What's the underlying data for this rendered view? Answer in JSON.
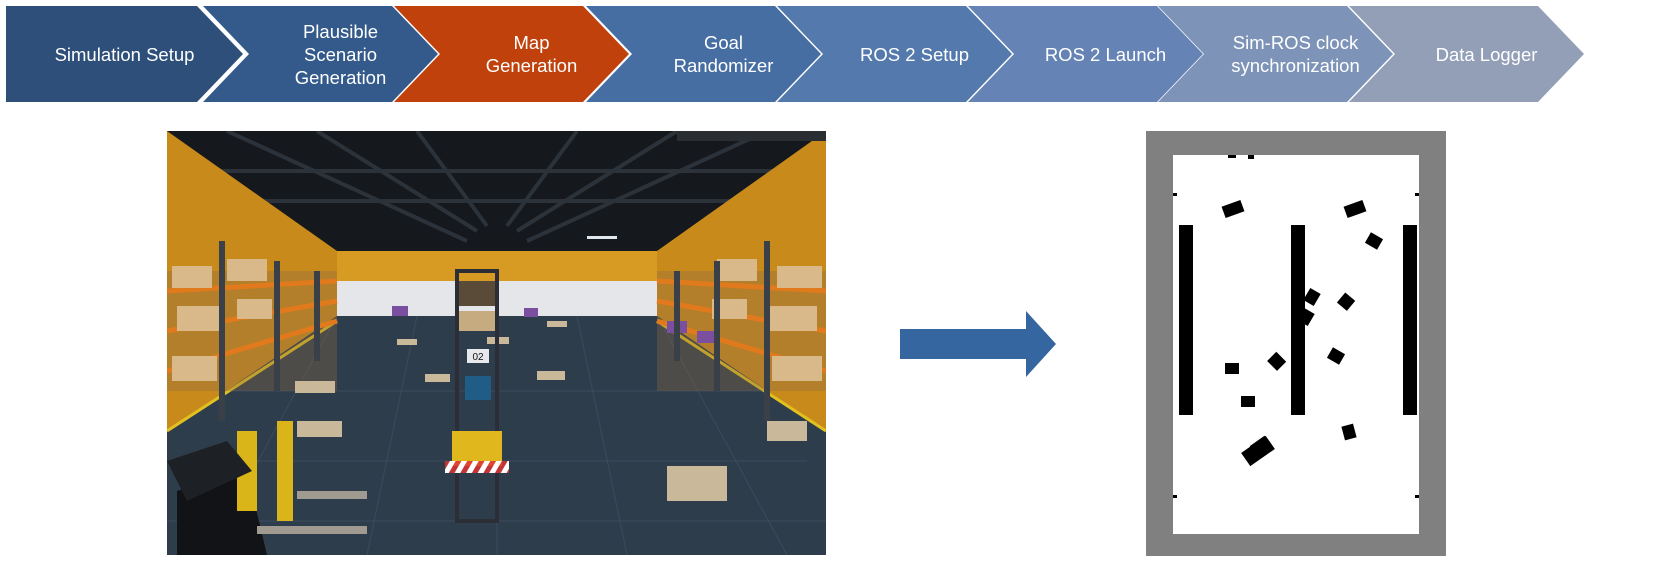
{
  "pipeline": {
    "steps": [
      {
        "label": "Simulation Setup",
        "color": "#2e4f7a",
        "state": "default"
      },
      {
        "label": "Plausible\nScenario\nGeneration",
        "color": "#335a8a",
        "state": "default"
      },
      {
        "label": "Map\nGeneration",
        "color": "#c0410c",
        "state": "active"
      },
      {
        "label": "Goal\nRandomizer",
        "color": "#466ea3",
        "state": "default"
      },
      {
        "label": "ROS 2 Setup",
        "color": "#5479ad",
        "state": "default"
      },
      {
        "label": "ROS 2 Launch",
        "color": "#6584b5",
        "state": "default"
      },
      {
        "label": "Sim-ROS clock\nsynchronization",
        "color": "#7d93b8",
        "state": "default"
      },
      {
        "label": "Data Logger",
        "color": "#939fb7",
        "state": "default"
      }
    ]
  },
  "photo": {
    "subject": "warehouse simulation scene",
    "forklift_tag": "02"
  },
  "arrow": {
    "color": "#3566a0",
    "direction": "right"
  },
  "occupancy_map": {
    "background": "#808080",
    "free_color": "#ffffff",
    "occupied_color": "#000000"
  }
}
